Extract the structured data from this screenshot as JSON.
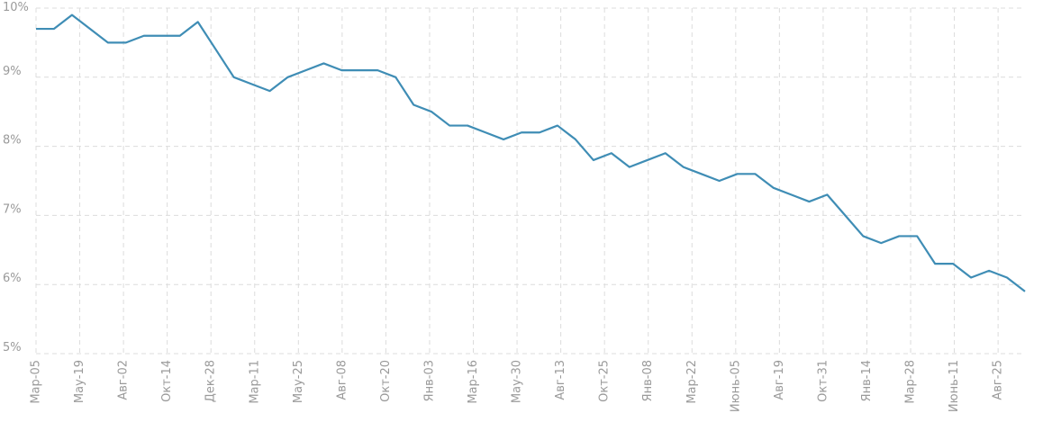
{
  "chart_data": {
    "type": "line",
    "xticks": [
      "Мар-05",
      "Мау-19",
      "Авг-02",
      "Окт-14",
      "Дек-28",
      "Мар-11",
      "Мау-25",
      "Авг-08",
      "Окт-20",
      "Янв-03",
      "Мар-16",
      "Мау-30",
      "Авг-13",
      "Окт-25",
      "Янв-08",
      "Мар-22",
      "Июнь-05",
      "Авг-19",
      "Окт-31",
      "Янв-14",
      "Мар-28",
      "Июнь-11",
      "Авг-25"
    ],
    "series": [
      {
        "color": "#3f8db5",
        "values": [
          9.7,
          9.7,
          9.9,
          9.7,
          9.5,
          9.5,
          9.6,
          9.6,
          9.6,
          9.8,
          9.4,
          9.0,
          8.9,
          8.8,
          9.0,
          9.1,
          9.2,
          9.1,
          9.1,
          9.1,
          9.0,
          8.6,
          8.5,
          8.3,
          8.3,
          8.2,
          8.1,
          8.2,
          8.2,
          8.3,
          8.1,
          7.8,
          7.9,
          7.7,
          7.8,
          7.9,
          7.7,
          7.6,
          7.5,
          7.6,
          7.6,
          7.4,
          7.3,
          7.2,
          7.3,
          7.0,
          6.7,
          6.6,
          6.7,
          6.7,
          6.3,
          6.3,
          6.1,
          6.2,
          6.1,
          5.9
        ]
      }
    ],
    "ylim": [
      5,
      10
    ],
    "yticks": [
      {
        "value": 5,
        "label": "5%"
      },
      {
        "value": 6,
        "label": "6%"
      },
      {
        "value": 7,
        "label": "7%"
      },
      {
        "value": 8,
        "label": "8%"
      },
      {
        "value": 9,
        "label": "9%"
      },
      {
        "value": 10,
        "label": "10%"
      }
    ],
    "grid": true
  }
}
